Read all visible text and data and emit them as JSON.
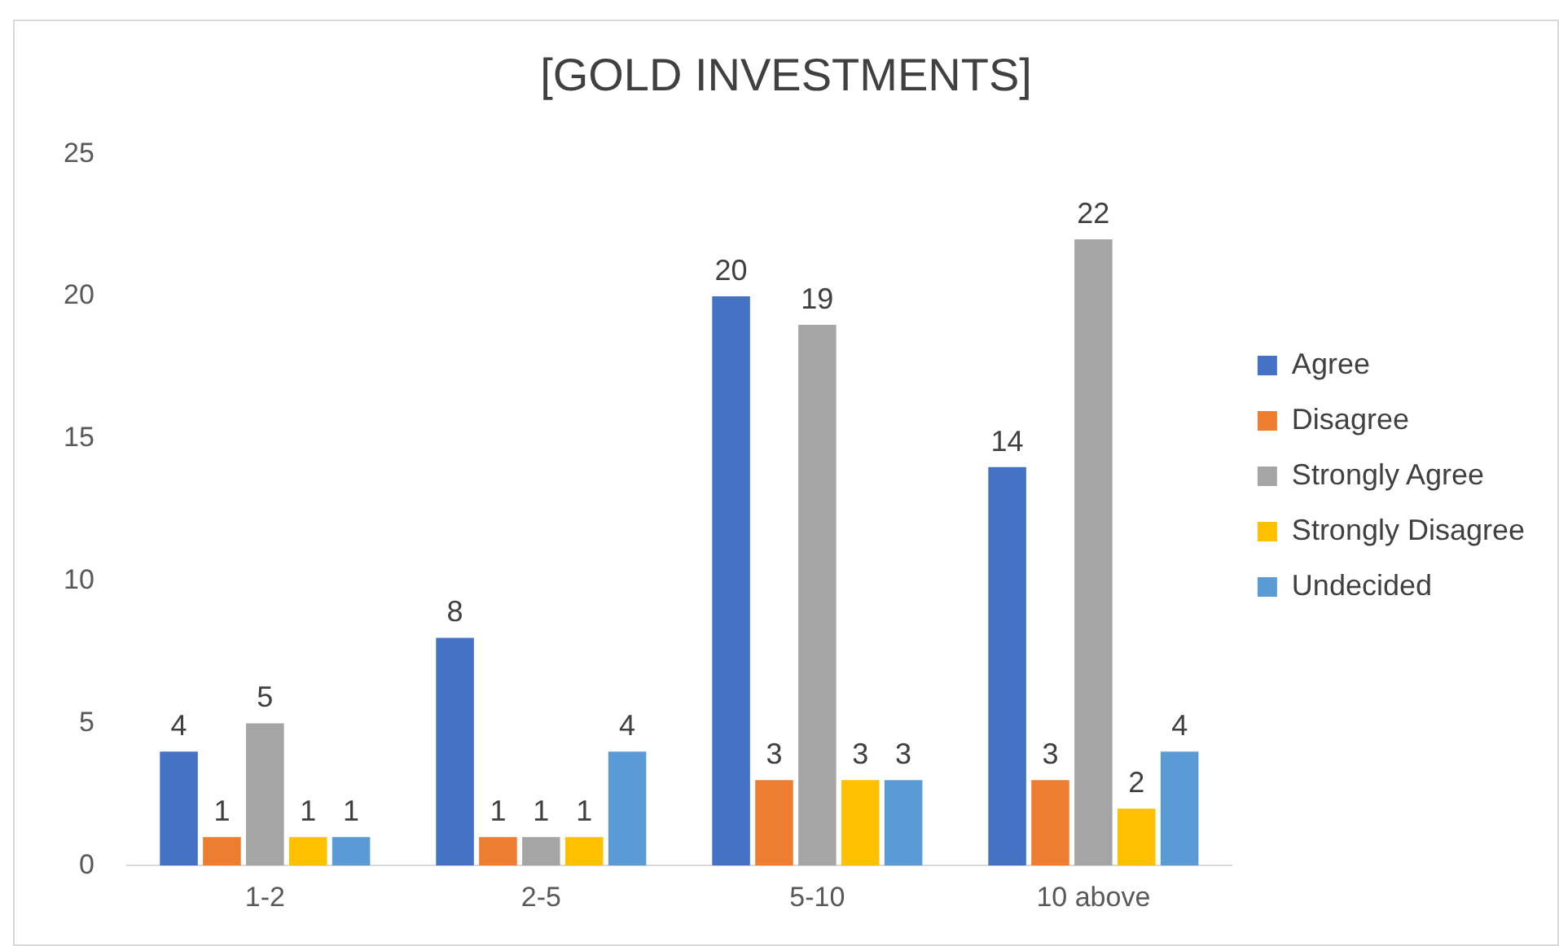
{
  "chart_data": {
    "type": "bar",
    "title": "[GOLD INVESTMENTS]",
    "categories": [
      "1-2",
      "2-5",
      "5-10",
      "10 above"
    ],
    "series": [
      {
        "name": "Agree",
        "color": "#4472c4",
        "values": [
          4,
          8,
          20,
          14
        ]
      },
      {
        "name": "Disagree",
        "color": "#ed7d31",
        "values": [
          1,
          1,
          3,
          3
        ]
      },
      {
        "name": "Strongly Agree",
        "color": "#a5a5a5",
        "values": [
          5,
          1,
          19,
          22
        ]
      },
      {
        "name": "Strongly Disagree",
        "color": "#ffc000",
        "values": [
          1,
          1,
          3,
          2
        ]
      },
      {
        "name": "Undecided",
        "color": "#5b9bd5",
        "values": [
          1,
          4,
          3,
          4
        ]
      }
    ],
    "ylim": [
      0,
      25
    ],
    "yticks": [
      0,
      5,
      10,
      15,
      20,
      25
    ],
    "grid": false,
    "legend": "right",
    "data_labels": true
  }
}
